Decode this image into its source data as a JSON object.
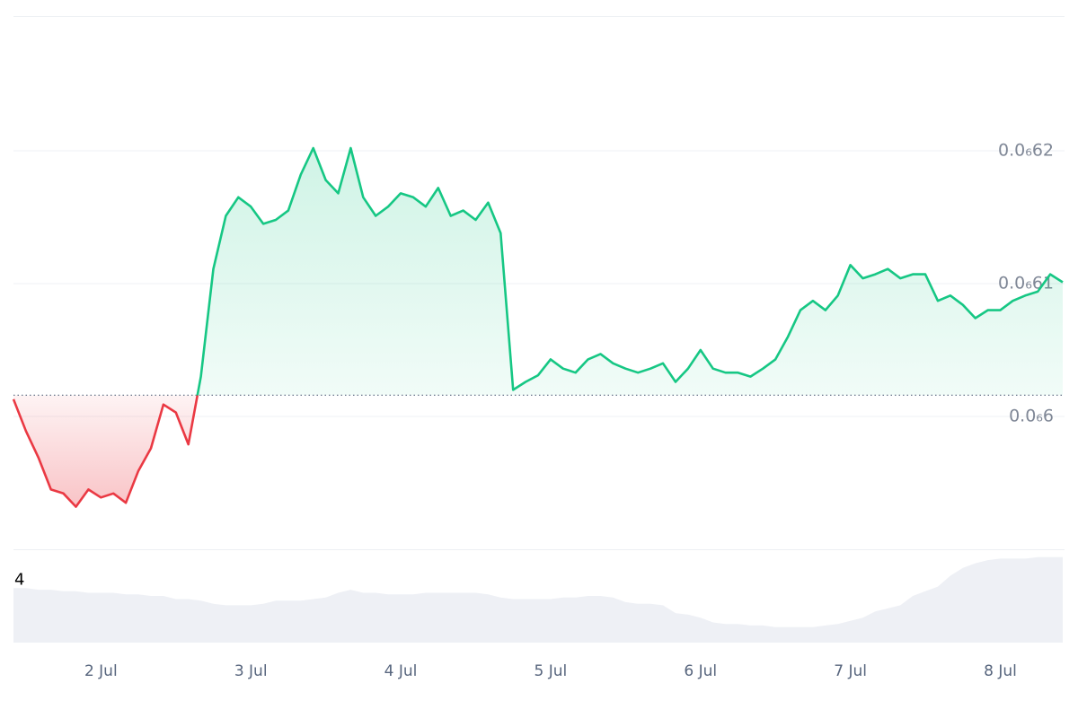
{
  "chart_data": {
    "type": "line",
    "categories": [
      null,
      null,
      null,
      null,
      null,
      null,
      null,
      "2 Jul",
      null,
      null,
      null,
      null,
      null,
      null,
      null,
      null,
      null,
      null,
      null,
      "3 Jul",
      null,
      null,
      null,
      null,
      null,
      null,
      null,
      null,
      null,
      null,
      null,
      "4 Jul",
      null,
      null,
      null,
      null,
      null,
      null,
      null,
      null,
      null,
      null,
      null,
      "5 Jul",
      null,
      null,
      null,
      null,
      null,
      null,
      null,
      null,
      null,
      null,
      null,
      "6 Jul",
      null,
      null,
      null,
      null,
      null,
      null,
      null,
      null,
      null,
      null,
      null,
      "7 Jul",
      null,
      null,
      null,
      null,
      null,
      null,
      null,
      null,
      null,
      null,
      null,
      "8 Jul",
      null,
      null,
      null,
      null,
      null
    ],
    "values": [
      6.013e-07,
      5.989e-07,
      5.969e-07,
      5.945e-07,
      5.942e-07,
      5.932e-07,
      5.945e-07,
      5.939e-07,
      5.942e-07,
      5.935e-07,
      5.959e-07,
      5.976e-07,
      6.009e-07,
      6.003e-07,
      5.979e-07,
      6.03e-07,
      6.111e-07,
      6.151e-07,
      6.165e-07,
      6.158e-07,
      6.145e-07,
      6.148e-07,
      6.155e-07,
      6.182e-07,
      6.202e-07,
      6.178e-07,
      6.168e-07,
      6.202e-07,
      6.165e-07,
      6.151e-07,
      6.158e-07,
      6.168e-07,
      6.165e-07,
      6.158e-07,
      6.172e-07,
      6.151e-07,
      6.155e-07,
      6.148e-07,
      6.161e-07,
      6.138e-07,
      6.02e-07,
      6.026e-07,
      6.031e-07,
      6.043e-07,
      6.036e-07,
      6.033e-07,
      6.043e-07,
      6.047e-07,
      6.04e-07,
      6.036e-07,
      6.033e-07,
      6.036e-07,
      6.04e-07,
      6.026e-07,
      6.036e-07,
      6.05e-07,
      6.036e-07,
      6.033e-07,
      6.033e-07,
      6.03e-07,
      6.036e-07,
      6.043e-07,
      6.06e-07,
      6.08e-07,
      6.087e-07,
      6.08e-07,
      6.091e-07,
      6.114e-07,
      6.104e-07,
      6.107e-07,
      6.111e-07,
      6.104e-07,
      6.107e-07,
      6.107e-07,
      6.087e-07,
      6.091e-07,
      6.084e-07,
      6.074e-07,
      6.08e-07,
      6.08e-07,
      6.087e-07,
      6.091e-07,
      6.094e-07,
      6.107e-07,
      6.101e-07
    ],
    "baseline": 6.016e-07,
    "up_color": "#16c784",
    "down_color": "#ea3943",
    "ylim": [
      5.9e-07,
      6.3e-07
    ],
    "yticks": [
      {
        "value": 6e-07,
        "label": "0.0₆6"
      },
      {
        "value": 6.1e-07,
        "label": "0.0₆61"
      },
      {
        "value": 6.2e-07,
        "label": "0.0₆62"
      }
    ],
    "grid": true,
    "volume": {
      "values": [
        3.5,
        3.5,
        3.4,
        3.4,
        3.3,
        3.3,
        3.2,
        3.2,
        3.2,
        3.1,
        3.1,
        3.0,
        3.0,
        2.8,
        2.8,
        2.7,
        2.5,
        2.4,
        2.4,
        2.4,
        2.5,
        2.7,
        2.7,
        2.7,
        2.8,
        2.9,
        3.2,
        3.4,
        3.2,
        3.2,
        3.1,
        3.1,
        3.1,
        3.2,
        3.2,
        3.2,
        3.2,
        3.2,
        3.1,
        2.9,
        2.8,
        2.8,
        2.8,
        2.8,
        2.9,
        2.9,
        3.0,
        3.0,
        2.9,
        2.6,
        2.5,
        2.5,
        2.4,
        1.9,
        1.8,
        1.6,
        1.3,
        1.2,
        1.2,
        1.1,
        1.1,
        1.0,
        1.0,
        1.0,
        1.0,
        1.1,
        1.2,
        1.4,
        1.6,
        2.0,
        2.2,
        2.4,
        3.0,
        3.3,
        3.6,
        4.3,
        4.8,
        5.1,
        5.3,
        5.4,
        5.4,
        5.4,
        5.5,
        5.5,
        5.5
      ],
      "ylim": [
        0,
        6
      ],
      "yticks": [
        4
      ],
      "color": "#eef0f5"
    }
  }
}
